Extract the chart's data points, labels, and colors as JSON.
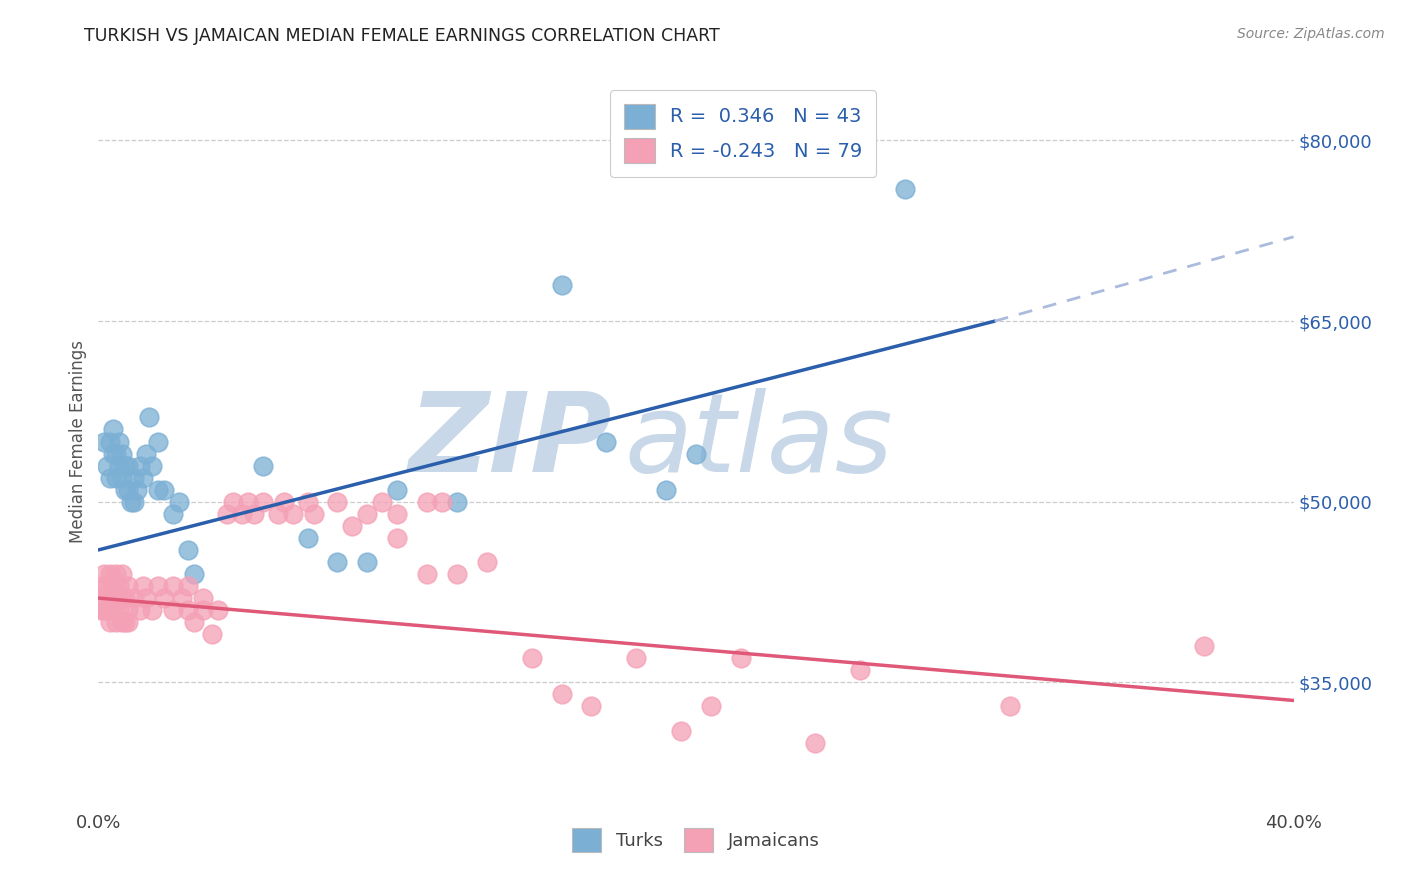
{
  "title": "TURKISH VS JAMAICAN MEDIAN FEMALE EARNINGS CORRELATION CHART",
  "source": "Source: ZipAtlas.com",
  "ylabel": "Median Female Earnings",
  "right_yticks": [
    35000,
    50000,
    65000,
    80000
  ],
  "right_yticklabels": [
    "$35,000",
    "$50,000",
    "$65,000",
    "$80,000"
  ],
  "turks_R": "0.346",
  "turks_N": "43",
  "jamaicans_R": "-0.243",
  "jamaicans_N": "79",
  "turk_color": "#7bafd4",
  "jamaican_color": "#f4a0b5",
  "turk_line_color": "#2b5fac",
  "jamaican_line_color": "#e05878",
  "turk_line_dashed_color": "#aabbdd",
  "watermark_zip": "ZIP",
  "watermark_atlas": "atlas",
  "watermark_color": "#c8d8e8",
  "background_color": "#ffffff",
  "xlim": [
    0.0,
    0.4
  ],
  "ylim": [
    25000,
    85000
  ],
  "turk_line": {
    "x0": 0.0,
    "y0": 46000,
    "x1": 0.3,
    "y1": 65000,
    "xdash": 0.4,
    "ydash": 72000
  },
  "jamaican_line": {
    "x0": 0.0,
    "y0": 42000,
    "x1": 0.4,
    "y1": 33500
  },
  "turks_scatter": [
    [
      0.002,
      55000
    ],
    [
      0.003,
      53000
    ],
    [
      0.004,
      52000
    ],
    [
      0.004,
      55000
    ],
    [
      0.005,
      56000
    ],
    [
      0.005,
      54000
    ],
    [
      0.006,
      52000
    ],
    [
      0.006,
      54000
    ],
    [
      0.007,
      55000
    ],
    [
      0.007,
      53000
    ],
    [
      0.008,
      52000
    ],
    [
      0.008,
      54000
    ],
    [
      0.009,
      53000
    ],
    [
      0.009,
      51000
    ],
    [
      0.01,
      53000
    ],
    [
      0.01,
      51000
    ],
    [
      0.011,
      50000
    ],
    [
      0.012,
      52000
    ],
    [
      0.012,
      50000
    ],
    [
      0.013,
      51000
    ],
    [
      0.014,
      53000
    ],
    [
      0.015,
      52000
    ],
    [
      0.016,
      54000
    ],
    [
      0.017,
      57000
    ],
    [
      0.018,
      53000
    ],
    [
      0.02,
      55000
    ],
    [
      0.02,
      51000
    ],
    [
      0.022,
      51000
    ],
    [
      0.025,
      49000
    ],
    [
      0.027,
      50000
    ],
    [
      0.03,
      46000
    ],
    [
      0.032,
      44000
    ],
    [
      0.055,
      53000
    ],
    [
      0.07,
      47000
    ],
    [
      0.08,
      45000
    ],
    [
      0.09,
      45000
    ],
    [
      0.1,
      51000
    ],
    [
      0.12,
      50000
    ],
    [
      0.17,
      55000
    ],
    [
      0.19,
      51000
    ],
    [
      0.2,
      54000
    ],
    [
      0.27,
      76000
    ],
    [
      0.155,
      68000
    ]
  ],
  "jamaicans_scatter": [
    [
      0.001,
      43000
    ],
    [
      0.001,
      41000
    ],
    [
      0.001,
      42000
    ],
    [
      0.002,
      44000
    ],
    [
      0.002,
      42000
    ],
    [
      0.002,
      41000
    ],
    [
      0.003,
      43000
    ],
    [
      0.003,
      41000
    ],
    [
      0.003,
      42000
    ],
    [
      0.004,
      44000
    ],
    [
      0.004,
      42000
    ],
    [
      0.004,
      40000
    ],
    [
      0.005,
      43000
    ],
    [
      0.005,
      41000
    ],
    [
      0.005,
      42000
    ],
    [
      0.006,
      44000
    ],
    [
      0.006,
      42000
    ],
    [
      0.006,
      40000
    ],
    [
      0.007,
      43000
    ],
    [
      0.007,
      41000
    ],
    [
      0.007,
      42000
    ],
    [
      0.008,
      44000
    ],
    [
      0.008,
      42000
    ],
    [
      0.008,
      40000
    ],
    [
      0.009,
      42000
    ],
    [
      0.009,
      40000
    ],
    [
      0.01,
      43000
    ],
    [
      0.01,
      41000
    ],
    [
      0.01,
      40000
    ],
    [
      0.012,
      42000
    ],
    [
      0.014,
      41000
    ],
    [
      0.015,
      43000
    ],
    [
      0.016,
      42000
    ],
    [
      0.018,
      41000
    ],
    [
      0.02,
      43000
    ],
    [
      0.022,
      42000
    ],
    [
      0.025,
      41000
    ],
    [
      0.025,
      43000
    ],
    [
      0.028,
      42000
    ],
    [
      0.03,
      43000
    ],
    [
      0.03,
      41000
    ],
    [
      0.032,
      40000
    ],
    [
      0.035,
      41000
    ],
    [
      0.035,
      42000
    ],
    [
      0.038,
      39000
    ],
    [
      0.04,
      41000
    ],
    [
      0.043,
      49000
    ],
    [
      0.045,
      50000
    ],
    [
      0.048,
      49000
    ],
    [
      0.05,
      50000
    ],
    [
      0.052,
      49000
    ],
    [
      0.055,
      50000
    ],
    [
      0.06,
      49000
    ],
    [
      0.062,
      50000
    ],
    [
      0.065,
      49000
    ],
    [
      0.07,
      50000
    ],
    [
      0.072,
      49000
    ],
    [
      0.08,
      50000
    ],
    [
      0.085,
      48000
    ],
    [
      0.09,
      49000
    ],
    [
      0.095,
      50000
    ],
    [
      0.1,
      49000
    ],
    [
      0.1,
      47000
    ],
    [
      0.11,
      50000
    ],
    [
      0.11,
      44000
    ],
    [
      0.115,
      50000
    ],
    [
      0.12,
      44000
    ],
    [
      0.13,
      45000
    ],
    [
      0.145,
      37000
    ],
    [
      0.155,
      34000
    ],
    [
      0.165,
      33000
    ],
    [
      0.18,
      37000
    ],
    [
      0.195,
      31000
    ],
    [
      0.205,
      33000
    ],
    [
      0.215,
      37000
    ],
    [
      0.24,
      30000
    ],
    [
      0.255,
      36000
    ],
    [
      0.305,
      33000
    ],
    [
      0.37,
      38000
    ]
  ]
}
